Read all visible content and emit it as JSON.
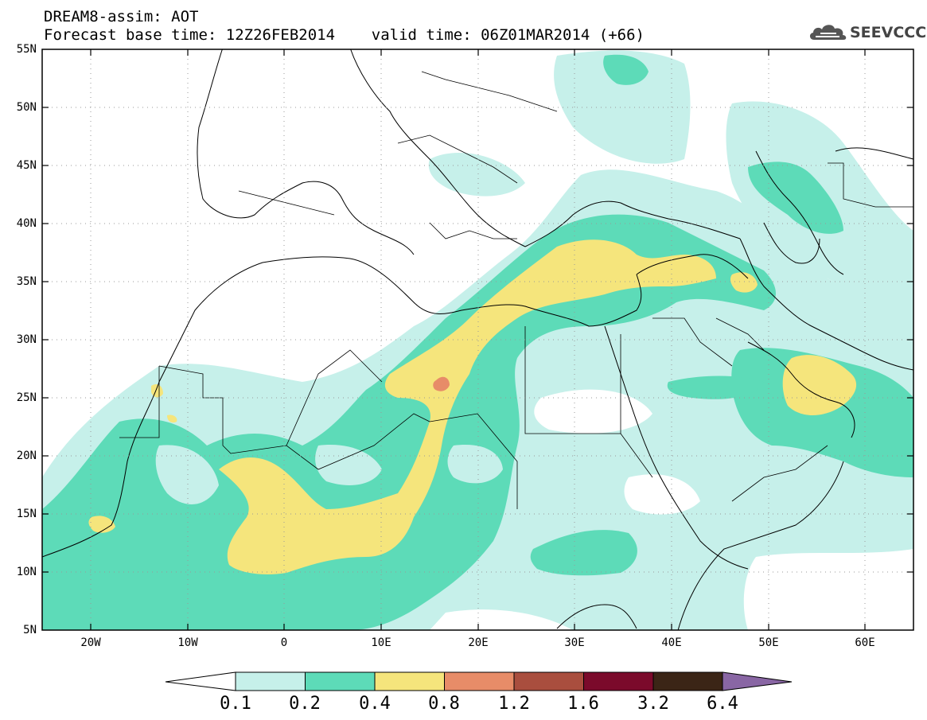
{
  "header": {
    "title_line1": "DREAM8-assim: AOT",
    "title_line2": "Forecast base time: 12Z26FEB2014    valid time: 06Z01MAR2014 (+66)"
  },
  "logo": {
    "text": "SEEVCCC",
    "icon": "cloud-icon"
  },
  "map": {
    "region": "North Africa, Europe and Middle East",
    "lat_labels": [
      "55N",
      "50N",
      "45N",
      "40N",
      "35N",
      "30N",
      "25N",
      "20N",
      "15N",
      "10N",
      "5N"
    ],
    "lon_labels": [
      "20W",
      "10W",
      "0",
      "10E",
      "20E",
      "30E",
      "40E",
      "50E",
      "60E"
    ],
    "lat_range": [
      5,
      55
    ],
    "lon_range": [
      -25,
      65
    ],
    "grid": "dotted"
  },
  "colorbar": {
    "bins": [
      {
        "label": "0.1",
        "color": "#c6f0ea"
      },
      {
        "label": "0.2",
        "color": "#5ddbb8"
      },
      {
        "label": "0.4",
        "color": "#f5e57c"
      },
      {
        "label": "0.8",
        "color": "#e78c68"
      },
      {
        "label": "1.2",
        "color": "#a94e3e"
      },
      {
        "label": "1.6",
        "color": "#7b0a2b"
      },
      {
        "label": "3.2",
        "color": "#3b2516"
      },
      {
        "label": "6.4",
        "color": "#8966a4"
      }
    ],
    "under_color": "#ffffff",
    "over_color": "#8966a4"
  }
}
